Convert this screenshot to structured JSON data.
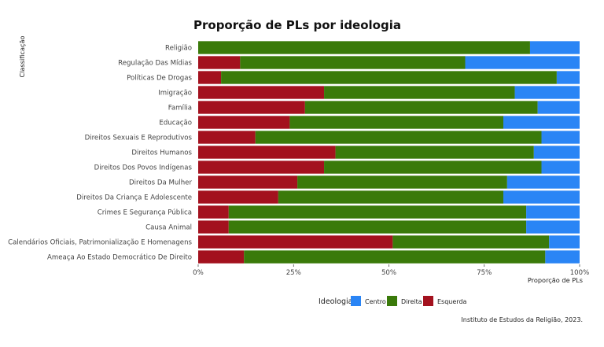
{
  "chart_data": {
    "type": "bar",
    "orientation": "horizontal",
    "stacked": true,
    "title": "Proporção de PLs por ideologia",
    "xlabel": "Proporção de PLs",
    "ylabel": "Classificação",
    "xlim": [
      0,
      1
    ],
    "x_ticks": [
      {
        "value": 0,
        "label": "0%"
      },
      {
        "value": 0.25,
        "label": "25%"
      },
      {
        "value": 0.5,
        "label": "50%"
      },
      {
        "value": 0.75,
        "label": "75%"
      },
      {
        "value": 1,
        "label": "100%"
      }
    ],
    "categories": [
      "Religião",
      "Regulação Das Mídias",
      "Políticas De Drogas",
      "Imigração",
      "Família",
      "Educação",
      "Direitos Sexuais E Reprodutivos",
      "Direitos Humanos",
      "Direitos Dos Povos Indígenas",
      "Direitos Da Mulher",
      "Direitos Da Criança E Adolescente",
      "Crimes E Segurança Pública",
      "Causa Animal",
      "Calendários Oficiais, Patrimonialização E Homenagens",
      "Ameaça Ao Estado Democrático De Direito"
    ],
    "series": [
      {
        "name": "Esquerda",
        "color": "#a3111e",
        "values": [
          0.0,
          0.11,
          0.06,
          0.33,
          0.28,
          0.24,
          0.15,
          0.36,
          0.33,
          0.26,
          0.21,
          0.08,
          0.08,
          0.51,
          0.12
        ]
      },
      {
        "name": "Direita",
        "color": "#3a7a0a",
        "values": [
          0.87,
          0.59,
          0.88,
          0.5,
          0.61,
          0.56,
          0.75,
          0.52,
          0.57,
          0.55,
          0.59,
          0.78,
          0.78,
          0.41,
          0.79
        ]
      },
      {
        "name": "Centro",
        "color": "#2a85f5",
        "values": [
          0.13,
          0.3,
          0.06,
          0.17,
          0.11,
          0.2,
          0.1,
          0.12,
          0.1,
          0.19,
          0.2,
          0.14,
          0.14,
          0.08,
          0.09
        ]
      }
    ],
    "stack_order": [
      "Esquerda",
      "Direita",
      "Centro"
    ],
    "grid": false,
    "legend": {
      "title": "Ideologia",
      "position": "bottom",
      "entries": [
        "Centro",
        "Direita",
        "Esquerda"
      ]
    },
    "caption": "Instituto de Estudos da Religião, 2023."
  }
}
